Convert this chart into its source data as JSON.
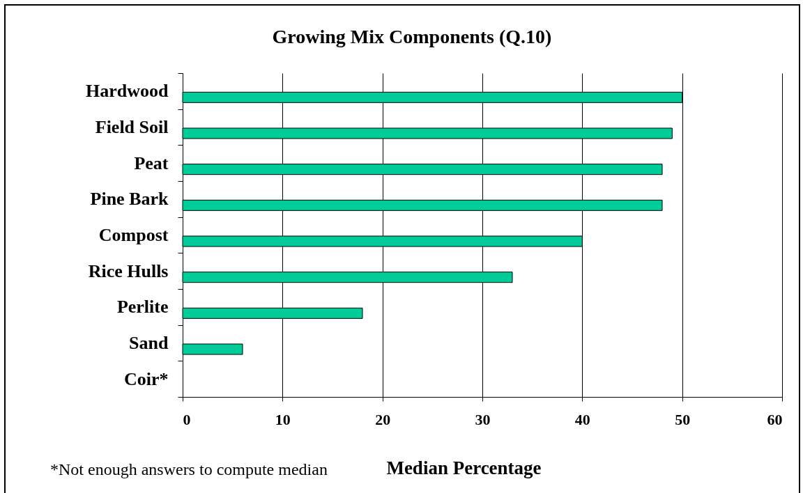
{
  "chart_data": {
    "type": "bar",
    "title": "Growing Mix Components (Q.10)",
    "xlabel": "Median Percentage",
    "orientation": "horizontal",
    "categories": [
      "Hardwood",
      "Field Soil",
      "Peat",
      "Pine Bark",
      "Compost",
      "Rice Hulls",
      "Perlite",
      "Sand",
      "Coir*"
    ],
    "values": [
      50,
      49,
      48,
      48,
      40,
      33,
      18,
      6,
      null
    ],
    "color": "#00cc99",
    "xlim": [
      0,
      60
    ],
    "xticks": [
      0,
      10,
      20,
      30,
      40,
      50,
      60
    ],
    "grid": "x",
    "annotations": [
      "*Not enough answers to compute median"
    ]
  }
}
